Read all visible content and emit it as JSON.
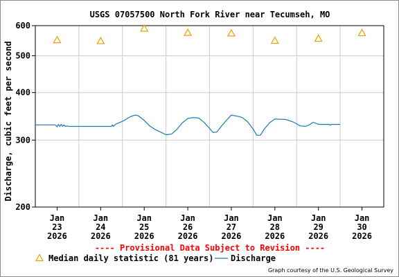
{
  "chart_data": {
    "type": "line",
    "title": "USGS 07057500 North Fork River near Tecumseh, MO",
    "ylabel": "Discharge, cubic feet per second",
    "yscale": "log",
    "ylim": [
      200,
      600
    ],
    "yticks": [
      200,
      300,
      400,
      500,
      600
    ],
    "xlim": [
      "2026-01-22T12:00",
      "2026-01-30T12:00"
    ],
    "xticks": [
      {
        "date": "2026-01-23",
        "label": [
          "Jan",
          "23",
          "2026"
        ]
      },
      {
        "date": "2026-01-24",
        "label": [
          "Jan",
          "24",
          "2026"
        ]
      },
      {
        "date": "2026-01-25",
        "label": [
          "Jan",
          "25",
          "2026"
        ]
      },
      {
        "date": "2026-01-26",
        "label": [
          "Jan",
          "26",
          "2026"
        ]
      },
      {
        "date": "2026-01-27",
        "label": [
          "Jan",
          "27",
          "2026"
        ]
      },
      {
        "date": "2026-01-28",
        "label": [
          "Jan",
          "28",
          "2026"
        ]
      },
      {
        "date": "2026-01-29",
        "label": [
          "Jan",
          "29",
          "2026"
        ]
      },
      {
        "date": "2026-01-30",
        "label": [
          "Jan",
          "30",
          "2026"
        ]
      }
    ],
    "vgrid": [
      "2026-01-23T12:00",
      "2026-01-24T12:00",
      "2026-01-25T12:00",
      "2026-01-26T12:00",
      "2026-01-27T12:00",
      "2026-01-28T12:00",
      "2026-01-29T12:00"
    ],
    "grid": true,
    "series": [
      {
        "name": "Median daily statistic (81 years)",
        "kind": "marker-triangle",
        "color": "#e6a000",
        "points": [
          {
            "x": "2026-01-23",
            "y": 550
          },
          {
            "x": "2026-01-24",
            "y": 547
          },
          {
            "x": "2026-01-25",
            "y": 590
          },
          {
            "x": "2026-01-26",
            "y": 575
          },
          {
            "x": "2026-01-27",
            "y": 573
          },
          {
            "x": "2026-01-28",
            "y": 548
          },
          {
            "x": "2026-01-29",
            "y": 555
          },
          {
            "x": "2026-01-30",
            "y": 574
          }
        ]
      },
      {
        "name": "Discharge",
        "kind": "line",
        "color": "#1f77b4",
        "points": [
          {
            "x": "2026-01-22T12:00",
            "y": 329
          },
          {
            "x": "2026-01-22T23:00",
            "y": 329
          },
          {
            "x": "2026-01-23T00:00",
            "y": 325
          },
          {
            "x": "2026-01-23T00:45",
            "y": 330
          },
          {
            "x": "2026-01-23T01:30",
            "y": 326
          },
          {
            "x": "2026-01-23T02:15",
            "y": 330
          },
          {
            "x": "2026-01-23T03:00",
            "y": 326
          },
          {
            "x": "2026-01-23T03:45",
            "y": 329
          },
          {
            "x": "2026-01-23T04:30",
            "y": 326
          },
          {
            "x": "2026-01-23T05:30",
            "y": 327
          },
          {
            "x": "2026-01-23T06:30",
            "y": 326
          },
          {
            "x": "2026-01-24T00:00",
            "y": 326
          },
          {
            "x": "2026-01-24T06:00",
            "y": 326
          },
          {
            "x": "2026-01-24T06:30",
            "y": 329
          },
          {
            "x": "2026-01-24T07:00",
            "y": 326
          },
          {
            "x": "2026-01-24T08:00",
            "y": 330
          },
          {
            "x": "2026-01-24T10:00",
            "y": 333
          },
          {
            "x": "2026-01-24T13:00",
            "y": 338
          },
          {
            "x": "2026-01-24T16:00",
            "y": 345
          },
          {
            "x": "2026-01-24T18:00",
            "y": 348
          },
          {
            "x": "2026-01-24T19:30",
            "y": 349
          },
          {
            "x": "2026-01-24T21:00",
            "y": 347
          },
          {
            "x": "2026-01-25T00:00",
            "y": 338
          },
          {
            "x": "2026-01-25T03:00",
            "y": 327
          },
          {
            "x": "2026-01-25T06:00",
            "y": 320
          },
          {
            "x": "2026-01-25T09:00",
            "y": 315
          },
          {
            "x": "2026-01-25T12:00",
            "y": 310
          },
          {
            "x": "2026-01-25T15:00",
            "y": 311
          },
          {
            "x": "2026-01-25T18:00",
            "y": 320
          },
          {
            "x": "2026-01-25T21:00",
            "y": 333
          },
          {
            "x": "2026-01-26T00:00",
            "y": 342
          },
          {
            "x": "2026-01-26T03:00",
            "y": 344
          },
          {
            "x": "2026-01-26T06:00",
            "y": 343
          },
          {
            "x": "2026-01-26T09:00",
            "y": 334
          },
          {
            "x": "2026-01-26T12:00",
            "y": 322
          },
          {
            "x": "2026-01-26T14:00",
            "y": 314
          },
          {
            "x": "2026-01-26T16:00",
            "y": 315
          },
          {
            "x": "2026-01-26T18:00",
            "y": 324
          },
          {
            "x": "2026-01-26T21:00",
            "y": 337
          },
          {
            "x": "2026-01-27T00:00",
            "y": 349
          },
          {
            "x": "2026-01-27T03:00",
            "y": 347
          },
          {
            "x": "2026-01-27T06:00",
            "y": 344
          },
          {
            "x": "2026-01-27T09:00",
            "y": 335
          },
          {
            "x": "2026-01-27T12:00",
            "y": 321
          },
          {
            "x": "2026-01-27T14:00",
            "y": 309
          },
          {
            "x": "2026-01-27T16:00",
            "y": 309
          },
          {
            "x": "2026-01-27T18:00",
            "y": 320
          },
          {
            "x": "2026-01-27T21:00",
            "y": 333
          },
          {
            "x": "2026-01-28T00:00",
            "y": 341
          },
          {
            "x": "2026-01-28T06:00",
            "y": 340
          },
          {
            "x": "2026-01-28T10:00",
            "y": 335
          },
          {
            "x": "2026-01-28T12:00",
            "y": 331
          },
          {
            "x": "2026-01-28T14:00",
            "y": 327
          },
          {
            "x": "2026-01-28T17:00",
            "y": 326
          },
          {
            "x": "2026-01-28T19:00",
            "y": 329
          },
          {
            "x": "2026-01-28T21:00",
            "y": 334
          },
          {
            "x": "2026-01-28T22:00",
            "y": 333
          },
          {
            "x": "2026-01-29T00:00",
            "y": 330
          },
          {
            "x": "2026-01-29T06:00",
            "y": 330
          },
          {
            "x": "2026-01-29T06:30",
            "y": 328
          },
          {
            "x": "2026-01-29T07:00",
            "y": 330
          },
          {
            "x": "2026-01-29T12:00",
            "y": 330
          }
        ]
      }
    ],
    "annotations": [
      "---- Provisional Data Subject to Revision ----"
    ],
    "legend": "bottom"
  },
  "colors": {
    "provisional": "#ff0000",
    "axis": "#000000",
    "grid": "#cccccc"
  },
  "credit": "Graph courtesy of the U.S. Geological Survey"
}
